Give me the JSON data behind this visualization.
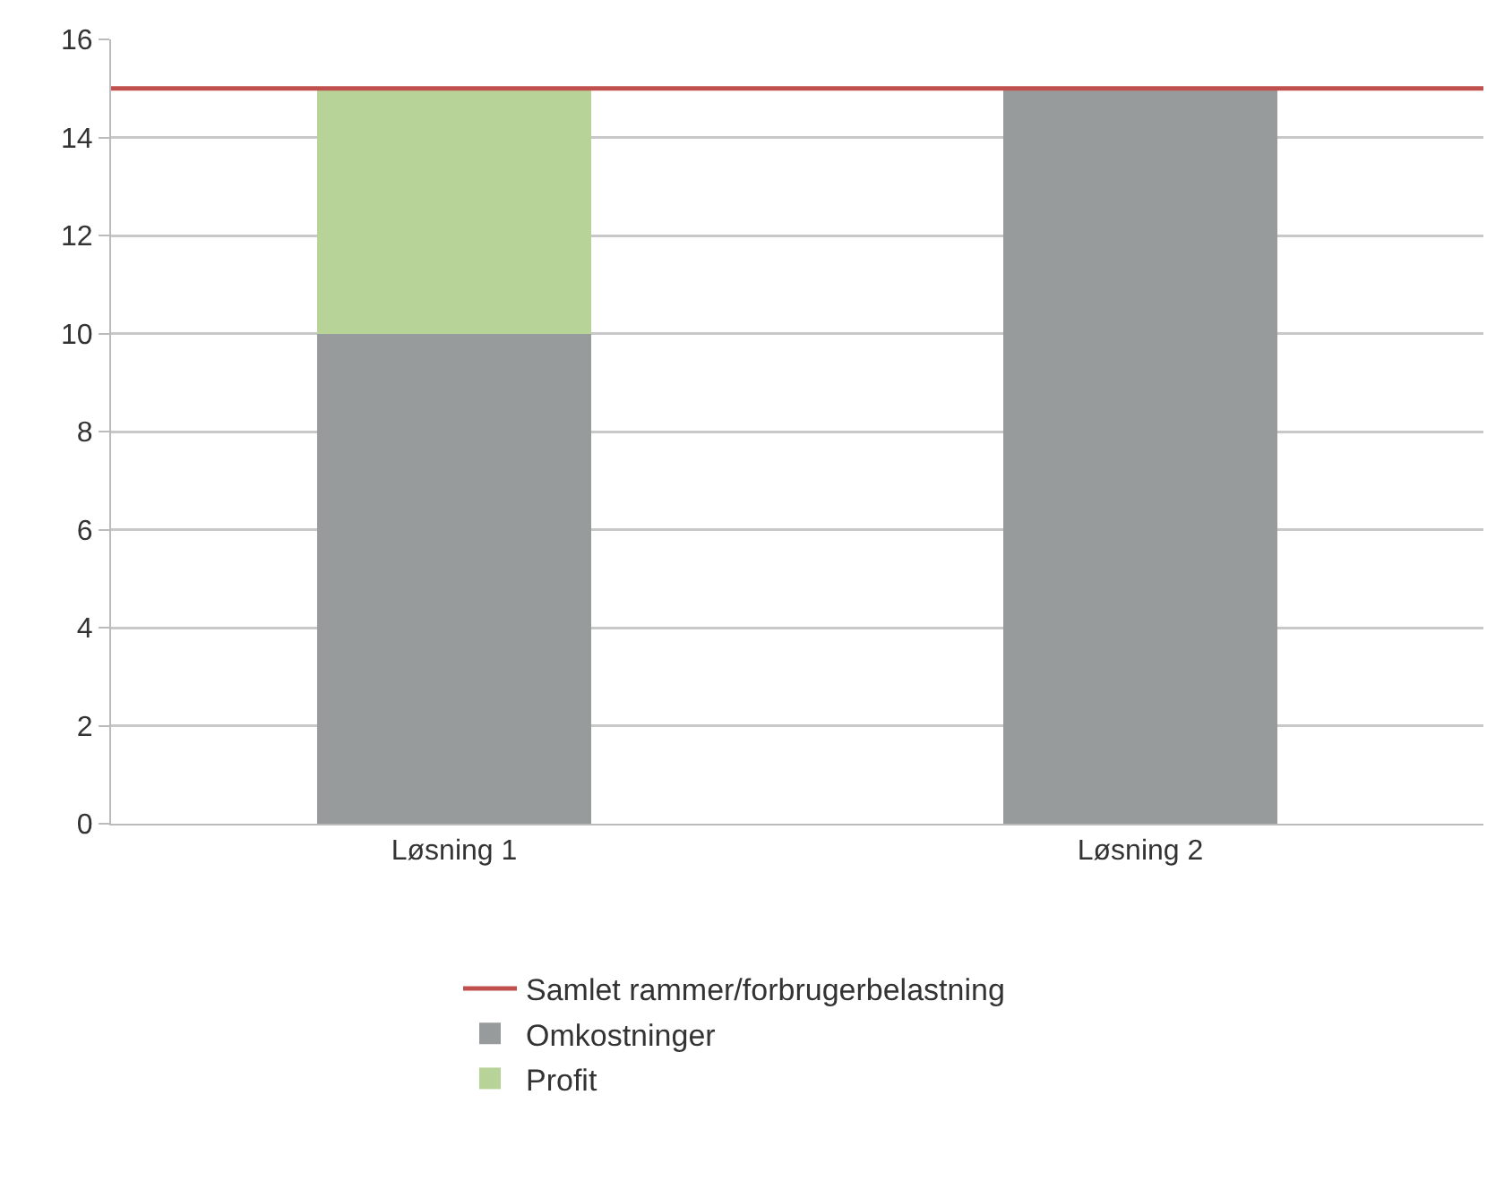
{
  "chart_data": {
    "type": "bar",
    "stacked": true,
    "categories": [
      "Løsning 1",
      "Løsning 2"
    ],
    "series": [
      {
        "name": "Omkostninger",
        "color": "#989b9c",
        "values": [
          10,
          15
        ]
      },
      {
        "name": "Profit",
        "color": "#b7d398",
        "values": [
          5,
          0
        ]
      }
    ],
    "ref_lines": [
      {
        "axis": "y",
        "value": 15,
        "label": "Samlet rammer/forbrugerbelastning",
        "color": "#c0504d"
      }
    ],
    "ylim": [
      0,
      16
    ],
    "yticks": [
      0,
      2,
      4,
      6,
      8,
      10,
      12,
      14,
      16
    ],
    "grid": "y",
    "legend": "bottom"
  }
}
